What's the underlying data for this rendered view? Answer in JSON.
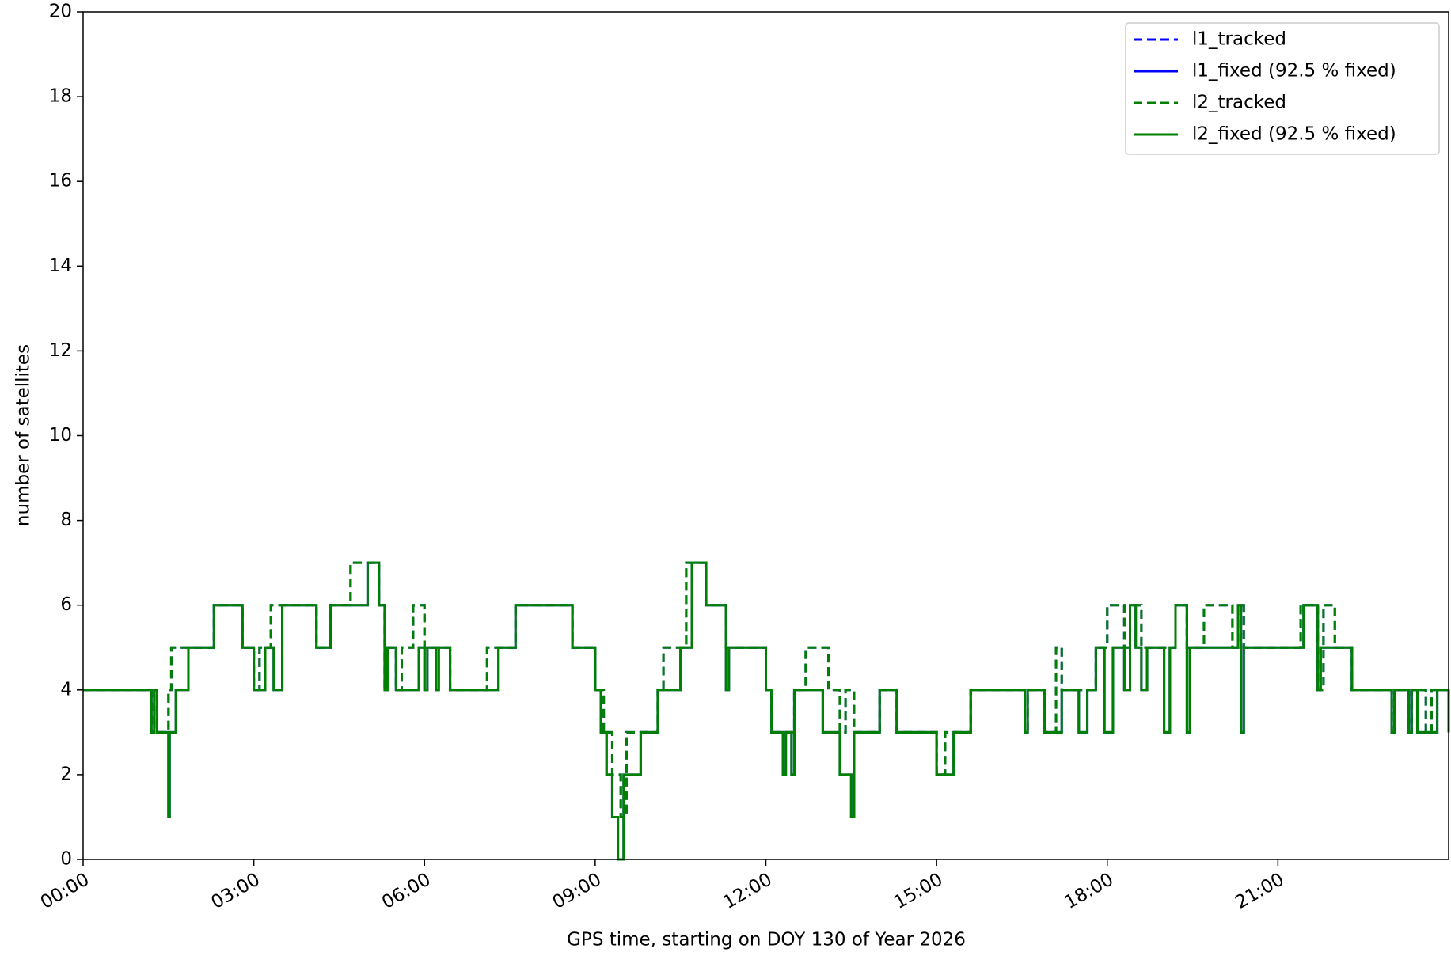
{
  "chart_data": {
    "type": "line",
    "step": "post",
    "xlabel": "GPS time, starting on DOY 130 of Year 2026",
    "ylabel": "number of satellites",
    "xlim": [
      0,
      24
    ],
    "ylim": [
      0,
      20
    ],
    "xticks": [
      {
        "value": 0,
        "label": "00:00"
      },
      {
        "value": 3,
        "label": "03:00"
      },
      {
        "value": 6,
        "label": "06:00"
      },
      {
        "value": 9,
        "label": "09:00"
      },
      {
        "value": 12,
        "label": "12:00"
      },
      {
        "value": 15,
        "label": "15:00"
      },
      {
        "value": 18,
        "label": "18:00"
      },
      {
        "value": 21,
        "label": "21:00"
      }
    ],
    "yticks": [
      0,
      2,
      4,
      6,
      8,
      10,
      12,
      14,
      16,
      18,
      20
    ],
    "legend": "upper right",
    "series": [
      {
        "name": "l1_tracked",
        "color": "#0000ff",
        "dashed": true,
        "x": [
          0,
          1.2,
          1.25,
          1.3,
          1.5,
          1.55,
          2.3,
          2.8,
          3.0,
          3.1,
          3.3,
          4.1,
          4.35,
          4.7,
          5.2,
          5.3,
          5.35,
          5.5,
          5.6,
          5.8,
          6.0,
          6.45,
          7.1,
          7.6,
          8.6,
          9.0,
          9.15,
          9.3,
          9.45,
          9.55,
          10.1,
          10.2,
          10.6,
          10.95,
          11.3,
          12.0,
          12.1,
          12.5,
          12.7,
          13.1,
          13.3,
          13.4,
          13.55,
          14.0,
          14.3,
          15.0,
          15.15,
          15.6,
          16.55,
          16.6,
          16.9,
          17.1,
          17.2,
          17.8,
          18.0,
          18.3,
          18.4,
          18.6,
          19.2,
          19.4,
          19.7,
          20.2,
          20.3,
          20.4,
          21.4,
          21.7,
          21.8,
          22.0,
          22.3,
          23.0,
          23.05,
          23.3,
          23.35,
          23.6,
          23.7,
          24
        ],
        "values": [
          4,
          3,
          4,
          3,
          4,
          5,
          6,
          5,
          4,
          5,
          6,
          5,
          6,
          7,
          6,
          4,
          5,
          4,
          5,
          6,
          5,
          4,
          5,
          6,
          5,
          4,
          3,
          2,
          1,
          3,
          4,
          5,
          7,
          6,
          5,
          4,
          3,
          4,
          5,
          4,
          3,
          4,
          3,
          4,
          3,
          2,
          3,
          4,
          3,
          4,
          3,
          5,
          4,
          5,
          6,
          5,
          6,
          5,
          6,
          5,
          6,
          5,
          6,
          5,
          6,
          4,
          6,
          5,
          4,
          3,
          4,
          3,
          4,
          3,
          4,
          4
        ]
      },
      {
        "name": "l1_fixed (92.5 % fixed)",
        "color": "#0000ff",
        "dashed": false,
        "x": [
          0,
          1.2,
          1.25,
          1.3,
          1.5,
          1.52,
          1.63,
          1.85,
          2.3,
          2.8,
          3.0,
          3.2,
          3.35,
          3.5,
          4.1,
          4.35,
          5.0,
          5.2,
          5.3,
          5.35,
          5.5,
          5.9,
          6.0,
          6.05,
          6.2,
          6.25,
          6.45,
          7.3,
          7.6,
          8.6,
          9.0,
          9.1,
          9.2,
          9.3,
          9.4,
          9.5,
          9.8,
          10.1,
          10.5,
          10.7,
          10.95,
          11.3,
          11.35,
          12.0,
          12.1,
          12.3,
          12.35,
          12.45,
          12.5,
          13.0,
          13.3,
          13.5,
          13.55,
          14.0,
          14.3,
          15.0,
          15.3,
          15.6,
          16.55,
          16.6,
          16.9,
          17.2,
          17.5,
          17.65,
          17.8,
          17.95,
          18.1,
          18.3,
          18.4,
          18.5,
          18.6,
          18.7,
          19.0,
          19.1,
          19.2,
          19.4,
          19.45,
          20.3,
          20.35,
          20.4,
          21.45,
          21.7,
          21.75,
          22.3,
          23.0,
          23.05,
          23.3,
          23.35,
          23.45,
          23.8,
          24
        ],
        "values": [
          4,
          3,
          4,
          3,
          1,
          3,
          4,
          5,
          6,
          5,
          4,
          5,
          4,
          6,
          5,
          6,
          7,
          6,
          4,
          5,
          4,
          5,
          4,
          5,
          4,
          5,
          4,
          5,
          6,
          5,
          4,
          3,
          2,
          1,
          0,
          2,
          3,
          4,
          5,
          7,
          6,
          4,
          5,
          4,
          3,
          2,
          3,
          2,
          4,
          3,
          2,
          1,
          3,
          4,
          3,
          2,
          3,
          4,
          3,
          4,
          3,
          4,
          3,
          4,
          5,
          3,
          5,
          4,
          6,
          5,
          4,
          5,
          3,
          5,
          6,
          3,
          5,
          6,
          3,
          5,
          6,
          4,
          5,
          4,
          3,
          4,
          3,
          4,
          3,
          4,
          3
        ]
      },
      {
        "name": "l2_tracked",
        "color": "#008000",
        "dashed": true,
        "x": [
          0,
          1.2,
          1.25,
          1.3,
          1.5,
          1.55,
          2.3,
          2.8,
          3.0,
          3.1,
          3.3,
          4.1,
          4.35,
          4.7,
          5.2,
          5.3,
          5.35,
          5.5,
          5.6,
          5.8,
          6.0,
          6.45,
          7.1,
          7.6,
          8.6,
          9.0,
          9.15,
          9.3,
          9.45,
          9.55,
          10.1,
          10.2,
          10.6,
          10.95,
          11.3,
          12.0,
          12.1,
          12.5,
          12.7,
          13.1,
          13.3,
          13.4,
          13.55,
          14.0,
          14.3,
          15.0,
          15.15,
          15.6,
          16.55,
          16.6,
          16.9,
          17.1,
          17.2,
          17.8,
          18.0,
          18.3,
          18.4,
          18.6,
          19.2,
          19.4,
          19.7,
          20.2,
          20.3,
          20.4,
          21.4,
          21.7,
          21.8,
          22.0,
          22.3,
          23.0,
          23.05,
          23.3,
          23.35,
          23.6,
          23.7,
          24
        ],
        "values": [
          4,
          3,
          4,
          3,
          4,
          5,
          6,
          5,
          4,
          5,
          6,
          5,
          6,
          7,
          6,
          4,
          5,
          4,
          5,
          6,
          5,
          4,
          5,
          6,
          5,
          4,
          3,
          2,
          1,
          3,
          4,
          5,
          7,
          6,
          5,
          4,
          3,
          4,
          5,
          4,
          3,
          4,
          3,
          4,
          3,
          2,
          3,
          4,
          3,
          4,
          3,
          5,
          4,
          5,
          6,
          5,
          6,
          5,
          6,
          5,
          6,
          5,
          6,
          5,
          6,
          4,
          6,
          5,
          4,
          3,
          4,
          3,
          4,
          3,
          4,
          4
        ]
      },
      {
        "name": "l2_fixed (92.5 % fixed)",
        "color": "#008000",
        "dashed": false,
        "x": [
          0,
          1.2,
          1.25,
          1.3,
          1.5,
          1.52,
          1.63,
          1.85,
          2.3,
          2.8,
          3.0,
          3.2,
          3.35,
          3.5,
          4.1,
          4.35,
          5.0,
          5.2,
          5.3,
          5.35,
          5.5,
          5.9,
          6.0,
          6.05,
          6.2,
          6.25,
          6.45,
          7.3,
          7.6,
          8.6,
          9.0,
          9.1,
          9.2,
          9.3,
          9.4,
          9.5,
          9.8,
          10.1,
          10.5,
          10.7,
          10.95,
          11.3,
          11.35,
          12.0,
          12.1,
          12.3,
          12.35,
          12.45,
          12.5,
          13.0,
          13.3,
          13.5,
          13.55,
          14.0,
          14.3,
          15.0,
          15.3,
          15.6,
          16.55,
          16.6,
          16.9,
          17.2,
          17.5,
          17.65,
          17.8,
          17.95,
          18.1,
          18.3,
          18.4,
          18.5,
          18.6,
          18.7,
          19.0,
          19.1,
          19.2,
          19.4,
          19.45,
          20.3,
          20.35,
          20.4,
          21.45,
          21.7,
          21.75,
          22.3,
          23.0,
          23.05,
          23.3,
          23.35,
          23.45,
          23.8,
          24
        ],
        "values": [
          4,
          3,
          4,
          3,
          1,
          3,
          4,
          5,
          6,
          5,
          4,
          5,
          4,
          6,
          5,
          6,
          7,
          6,
          4,
          5,
          4,
          5,
          4,
          5,
          4,
          5,
          4,
          5,
          6,
          5,
          4,
          3,
          2,
          1,
          0,
          2,
          3,
          4,
          5,
          7,
          6,
          4,
          5,
          4,
          3,
          2,
          3,
          2,
          4,
          3,
          2,
          1,
          3,
          4,
          3,
          2,
          3,
          4,
          3,
          4,
          3,
          4,
          3,
          4,
          5,
          3,
          5,
          4,
          6,
          5,
          4,
          5,
          3,
          5,
          6,
          3,
          5,
          6,
          3,
          5,
          6,
          4,
          5,
          4,
          3,
          4,
          3,
          4,
          3,
          4,
          3
        ]
      }
    ]
  }
}
